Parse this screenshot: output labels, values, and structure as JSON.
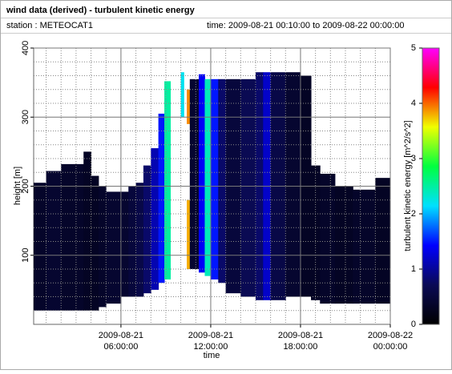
{
  "window": {
    "title": "wind data (derived) - turbulent kinetic energy",
    "station": "station : METEOCAT1",
    "time_range": "time: 2009-08-21 00:10:00 to 2009-08-22 00:00:00"
  },
  "chart_data": {
    "type": "heatmap",
    "xlabel": "time",
    "ylabel": "height [m]",
    "zlabel": "turbulent kinetic energy [m^2/s^2]",
    "xlim": [
      0.1667,
      24
    ],
    "ylim": [
      0,
      400
    ],
    "zlim": [
      0,
      5
    ],
    "xticks": [
      {
        "value": 6,
        "date": "2009-08-21",
        "label": "06:00:00"
      },
      {
        "value": 12,
        "date": "2009-08-21",
        "label": "12:00:00"
      },
      {
        "value": 18,
        "date": "2009-08-21",
        "label": "18:00:00"
      },
      {
        "value": 24,
        "date": "2009-08-22",
        "label": "00:00:00"
      }
    ],
    "xminorticks": [
      1,
      2,
      3,
      4,
      5,
      7,
      8,
      9,
      10,
      11,
      13,
      14,
      15,
      16,
      17,
      19,
      20,
      21,
      22,
      23
    ],
    "yticks": [
      100,
      200,
      300,
      400
    ],
    "yminorticks": [
      20,
      40,
      60,
      80,
      120,
      140,
      160,
      180,
      220,
      240,
      260,
      280,
      320,
      340,
      360,
      380
    ],
    "zticks": [
      0,
      1,
      2,
      3,
      4,
      5
    ],
    "colormap": [
      "#000000",
      "#0a0a55",
      "#0000ff",
      "#00e0ff",
      "#00ff40",
      "#f0ff00",
      "#ff0000",
      "#ff00ff"
    ],
    "grid": true,
    "cells": [
      {
        "x": [
          0.1667,
          1
        ],
        "y": [
          20,
          205
        ],
        "value": 0.35
      },
      {
        "x": [
          1,
          2
        ],
        "y": [
          20,
          222
        ],
        "value": 0.4
      },
      {
        "x": [
          2,
          3.5
        ],
        "y": [
          20,
          232
        ],
        "value": 0.35
      },
      {
        "x": [
          3.5,
          4
        ],
        "y": [
          20,
          250
        ],
        "value": 0.3
      },
      {
        "x": [
          4,
          4.5
        ],
        "y": [
          20,
          215
        ],
        "value": 0.3
      },
      {
        "x": [
          4.5,
          5
        ],
        "y": [
          25,
          200
        ],
        "value": 0.35
      },
      {
        "x": [
          5,
          6
        ],
        "y": [
          30,
          192
        ],
        "value": 0.4
      },
      {
        "x": [
          6,
          6.5
        ],
        "y": [
          40,
          192
        ],
        "value": 0.4
      },
      {
        "x": [
          6.5,
          7
        ],
        "y": [
          40,
          200
        ],
        "value": 0.5
      },
      {
        "x": [
          7,
          7.5
        ],
        "y": [
          40,
          205
        ],
        "value": 0.6
      },
      {
        "x": [
          7.5,
          8
        ],
        "y": [
          45,
          230
        ],
        "value": 0.8
      },
      {
        "x": [
          8,
          8.5
        ],
        "y": [
          50,
          255
        ],
        "value": 1.1
      },
      {
        "x": [
          8.5,
          8.9
        ],
        "y": [
          60,
          305
        ],
        "value": 1.5
      },
      {
        "x": [
          8.9,
          9.3
        ],
        "y": [
          65,
          352
        ],
        "value": 2.5
      },
      {
        "x": [
          10.0,
          10.2
        ],
        "y": [
          300,
          365
        ],
        "value": 2.2
      },
      {
        "x": [
          10.4,
          10.6
        ],
        "y": [
          80,
          180
        ],
        "value": 3.8
      },
      {
        "x": [
          10.4,
          10.6
        ],
        "y": [
          290,
          340
        ],
        "value": 3.9
      },
      {
        "x": [
          10.6,
          11.2
        ],
        "y": [
          80,
          355
        ],
        "value": 0.4
      },
      {
        "x": [
          11.2,
          11.6
        ],
        "y": [
          75,
          362
        ],
        "value": 1.4
      },
      {
        "x": [
          11.6,
          12.0
        ],
        "y": [
          70,
          355
        ],
        "value": 2.4
      },
      {
        "x": [
          12.0,
          12.5
        ],
        "y": [
          65,
          355
        ],
        "value": 1.5
      },
      {
        "x": [
          12.5,
          13
        ],
        "y": [
          60,
          355
        ],
        "value": 0.8
      },
      {
        "x": [
          13,
          14
        ],
        "y": [
          45,
          355
        ],
        "value": 0.5
      },
      {
        "x": [
          14,
          15
        ],
        "y": [
          40,
          355
        ],
        "value": 0.7
      },
      {
        "x": [
          15,
          15.5
        ],
        "y": [
          35,
          365
        ],
        "value": 0.8
      },
      {
        "x": [
          15.5,
          16
        ],
        "y": [
          35,
          365
        ],
        "value": 1.2
      },
      {
        "x": [
          16,
          17
        ],
        "y": [
          35,
          365
        ],
        "value": 0.6
      },
      {
        "x": [
          17,
          18
        ],
        "y": [
          40,
          365
        ],
        "value": 0.4
      },
      {
        "x": [
          18,
          18.7
        ],
        "y": [
          40,
          360
        ],
        "value": 0.3
      },
      {
        "x": [
          18.7,
          19.3
        ],
        "y": [
          35,
          230
        ],
        "value": 0.3
      },
      {
        "x": [
          19.3,
          20.3
        ],
        "y": [
          30,
          218
        ],
        "value": 0.35
      },
      {
        "x": [
          20.3,
          21.5
        ],
        "y": [
          30,
          200
        ],
        "value": 0.3
      },
      {
        "x": [
          21.5,
          23
        ],
        "y": [
          30,
          195
        ],
        "value": 0.35
      },
      {
        "x": [
          23,
          24
        ],
        "y": [
          30,
          212
        ],
        "value": 0.3
      }
    ]
  }
}
